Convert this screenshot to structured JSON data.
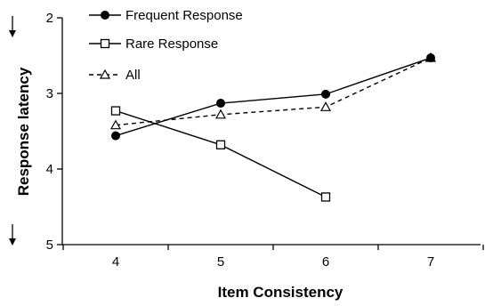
{
  "chart_data": {
    "type": "line",
    "xlabel": "Item Consistency",
    "ylabel": "Response latency",
    "x_ticks": [
      "4",
      "5",
      "6",
      "7"
    ],
    "y_ticks": [
      "2",
      "3",
      "4",
      "5"
    ],
    "xlim": [
      3.5,
      7.8
    ],
    "ylim": [
      2,
      5
    ],
    "y_inverted": true,
    "legend_position": "top-left",
    "series": [
      {
        "name": "Frequent Response",
        "x": [
          4,
          5,
          6,
          7
        ],
        "y": [
          3.56,
          3.13,
          3.01,
          2.53
        ],
        "marker": "filled-circle",
        "line": "solid",
        "color": "#000000"
      },
      {
        "name": "Rare Response",
        "x": [
          4,
          5,
          6
        ],
        "y": [
          3.23,
          3.68,
          4.37
        ],
        "marker": "open-square",
        "line": "solid",
        "color": "#000000"
      },
      {
        "name": "All",
        "x": [
          4,
          5,
          6,
          7
        ],
        "y": [
          3.42,
          3.28,
          3.18,
          2.53
        ],
        "marker": "open-triangle",
        "line": "dashed",
        "color": "#000000"
      }
    ]
  }
}
